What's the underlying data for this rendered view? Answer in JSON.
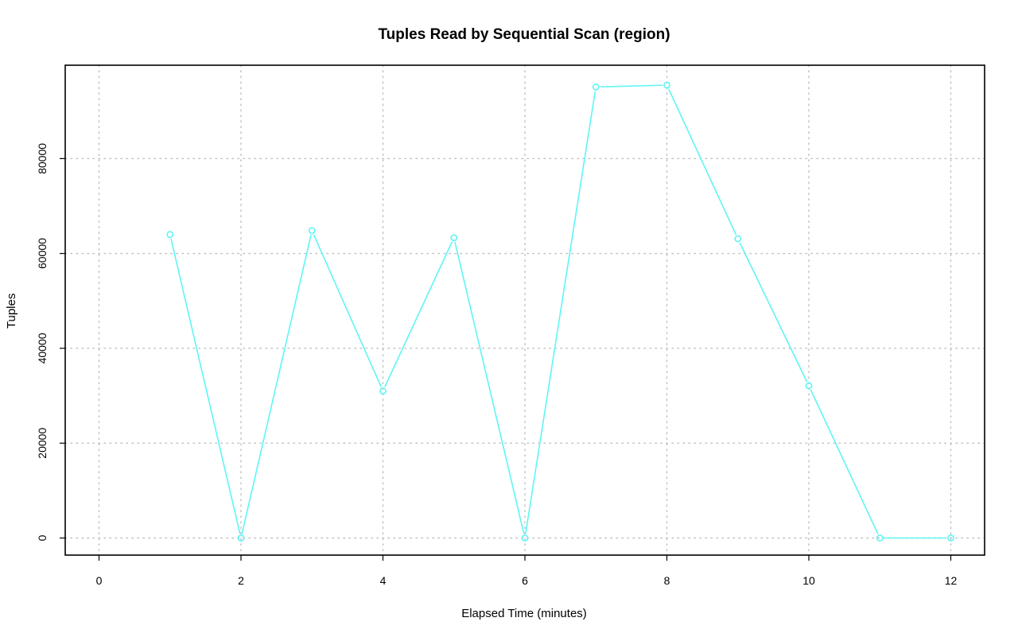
{
  "chart_data": {
    "type": "line",
    "title": "Tuples Read by Sequential Scan (region)",
    "xlabel": "Elapsed Time (minutes)",
    "ylabel": "Tuples",
    "xlim": [
      0,
      12
    ],
    "ylim": [
      0,
      96000
    ],
    "x_ticks": [
      0,
      2,
      4,
      6,
      8,
      10,
      12
    ],
    "y_ticks": [
      0,
      20000,
      40000,
      60000,
      80000
    ],
    "grid": true,
    "legend": "none",
    "series": [
      {
        "color": "#5ff5f5",
        "marker": "open-circle",
        "x": [
          1,
          2,
          3,
          4,
          5,
          6,
          7,
          8,
          9,
          10,
          11,
          12
        ],
        "y": [
          64000,
          0,
          64800,
          31000,
          63300,
          0,
          95100,
          95500,
          63100,
          32100,
          0,
          0
        ]
      }
    ]
  }
}
